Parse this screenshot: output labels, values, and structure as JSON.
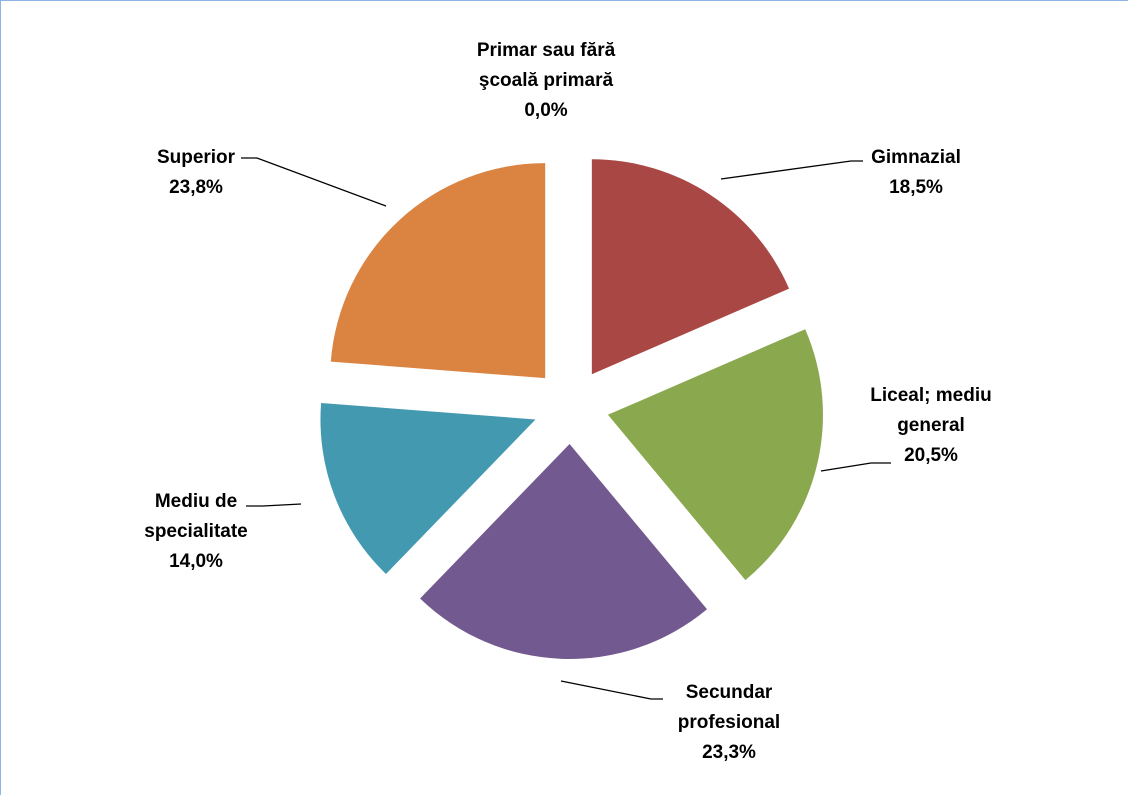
{
  "chart_data": {
    "type": "pie",
    "categories": [
      "Primar sau fără şcoală primară",
      "Gimnazial",
      "Liceal; mediu general",
      "Secundar profesional",
      "Mediu de specialitate",
      "Superior"
    ],
    "values": [
      0.0,
      18.5,
      20.5,
      23.3,
      14.0,
      23.8
    ],
    "value_labels": [
      "0,0%",
      "18,5%",
      "20,5%",
      "23,3%",
      "14,0%",
      "23,8%"
    ],
    "colors": [
      "#4f81bd",
      "#a94744",
      "#8aa84e",
      "#72598f",
      "#4399af",
      "#db8340"
    ]
  }
}
